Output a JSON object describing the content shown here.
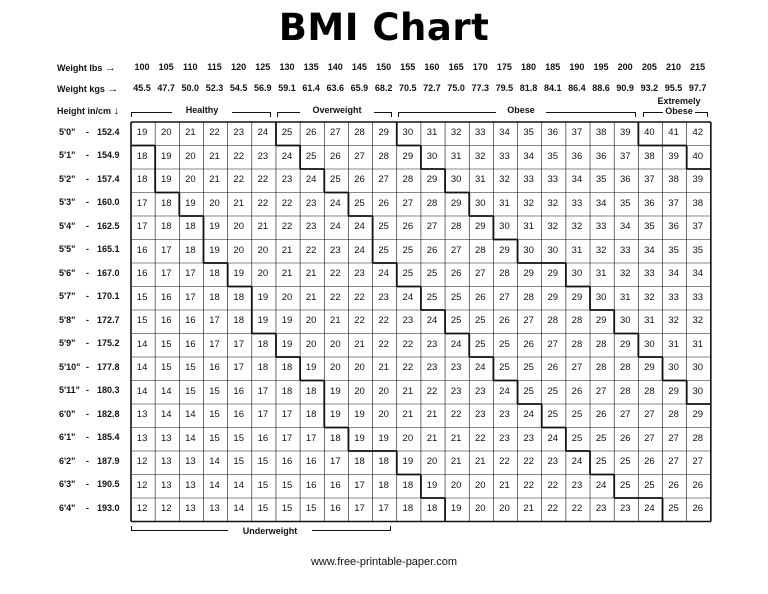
{
  "title": "BMI Chart",
  "labels": {
    "weight_lbs": "Weight lbs",
    "weight_kgs": "Weight kgs",
    "height": "Height in/cm",
    "arrow_right": "→",
    "arrow_down": "↓"
  },
  "weights_lbs": [
    "100",
    "105",
    "110",
    "115",
    "120",
    "125",
    "130",
    "135",
    "140",
    "145",
    "150",
    "155",
    "160",
    "165",
    "170",
    "175",
    "180",
    "185",
    "190",
    "195",
    "200",
    "205",
    "210",
    "215"
  ],
  "weights_kgs": [
    "45.5",
    "47.7",
    "50.0",
    "52.3",
    "54.5",
    "56.9",
    "59.1",
    "61.4",
    "63.6",
    "65.9",
    "68.2",
    "70.5",
    "72.7",
    "75.0",
    "77.3",
    "79.5",
    "81.8",
    "84.1",
    "86.4",
    "88.6",
    "90.9",
    "93.2",
    "95.5",
    "97.7"
  ],
  "categories": {
    "healthy": "Healthy",
    "overweight": "Overweight",
    "obese": "Obese",
    "extremely_obese_1": "Extremely",
    "extremely_obese_2": "Obese",
    "underweight": "Underweight"
  },
  "heights": [
    {
      "ft": "5'0\"",
      "cm": "152.4"
    },
    {
      "ft": "5'1\"",
      "cm": "154.9"
    },
    {
      "ft": "5'2\"",
      "cm": "157.4"
    },
    {
      "ft": "5'3\"",
      "cm": "160.0"
    },
    {
      "ft": "5'4\"",
      "cm": "162.5"
    },
    {
      "ft": "5'5\"",
      "cm": "165.1"
    },
    {
      "ft": "5'6\"",
      "cm": "167.0"
    },
    {
      "ft": "5'7\"",
      "cm": "170.1"
    },
    {
      "ft": "5'8\"",
      "cm": "172.7"
    },
    {
      "ft": "5'9\"",
      "cm": "175.2"
    },
    {
      "ft": "5'10\"",
      "cm": "177.8"
    },
    {
      "ft": "5'11\"",
      "cm": "180.3"
    },
    {
      "ft": "6'0\"",
      "cm": "182.8"
    },
    {
      "ft": "6'1\"",
      "cm": "185.4"
    },
    {
      "ft": "6'2\"",
      "cm": "187.9"
    },
    {
      "ft": "6'3\"",
      "cm": "190.5"
    },
    {
      "ft": "6'4\"",
      "cm": "193.0"
    }
  ],
  "bmi": [
    [
      19,
      20,
      21,
      22,
      23,
      24,
      25,
      26,
      27,
      28,
      29,
      30,
      31,
      32,
      33,
      34,
      35,
      36,
      37,
      38,
      39,
      40,
      41,
      42
    ],
    [
      18,
      19,
      20,
      21,
      22,
      23,
      24,
      25,
      26,
      27,
      28,
      29,
      30,
      31,
      32,
      33,
      34,
      35,
      36,
      36,
      37,
      38,
      39,
      40
    ],
    [
      18,
      19,
      20,
      21,
      22,
      22,
      23,
      24,
      25,
      26,
      27,
      28,
      29,
      30,
      31,
      32,
      33,
      33,
      34,
      35,
      36,
      37,
      38,
      39
    ],
    [
      17,
      18,
      19,
      20,
      21,
      22,
      22,
      23,
      24,
      25,
      26,
      27,
      28,
      29,
      30,
      31,
      32,
      32,
      33,
      34,
      35,
      36,
      37,
      38
    ],
    [
      17,
      18,
      18,
      19,
      20,
      21,
      22,
      23,
      24,
      24,
      25,
      26,
      27,
      28,
      29,
      30,
      31,
      32,
      32,
      33,
      34,
      35,
      36,
      37
    ],
    [
      16,
      17,
      18,
      19,
      20,
      20,
      21,
      22,
      23,
      24,
      25,
      25,
      26,
      27,
      28,
      29,
      30,
      30,
      31,
      32,
      33,
      34,
      35,
      35
    ],
    [
      16,
      17,
      17,
      18,
      19,
      20,
      21,
      21,
      22,
      23,
      24,
      25,
      25,
      26,
      27,
      28,
      29,
      29,
      30,
      31,
      32,
      33,
      34,
      34
    ],
    [
      15,
      16,
      17,
      18,
      18,
      19,
      20,
      21,
      22,
      22,
      23,
      24,
      25,
      25,
      26,
      27,
      28,
      29,
      29,
      30,
      31,
      32,
      33,
      33
    ],
    [
      15,
      16,
      16,
      17,
      18,
      19,
      19,
      20,
      21,
      22,
      22,
      23,
      24,
      25,
      25,
      26,
      27,
      28,
      28,
      29,
      30,
      31,
      32,
      32
    ],
    [
      14,
      15,
      16,
      17,
      17,
      18,
      19,
      20,
      20,
      21,
      22,
      22,
      23,
      24,
      25,
      25,
      26,
      27,
      28,
      28,
      29,
      30,
      31,
      31
    ],
    [
      14,
      15,
      15,
      16,
      17,
      18,
      18,
      19,
      20,
      20,
      21,
      22,
      23,
      23,
      24,
      25,
      25,
      26,
      27,
      28,
      28,
      29,
      30,
      30
    ],
    [
      14,
      14,
      15,
      15,
      16,
      17,
      18,
      18,
      19,
      20,
      20,
      21,
      22,
      23,
      23,
      24,
      25,
      25,
      26,
      27,
      28,
      28,
      29,
      30
    ],
    [
      13,
      14,
      14,
      15,
      16,
      17,
      17,
      18,
      19,
      19,
      20,
      21,
      21,
      22,
      23,
      23,
      24,
      25,
      25,
      26,
      27,
      27,
      28,
      29
    ],
    [
      13,
      13,
      14,
      15,
      15,
      16,
      17,
      17,
      18,
      19,
      19,
      20,
      21,
      21,
      22,
      23,
      23,
      24,
      25,
      25,
      26,
      27,
      27,
      28
    ],
    [
      12,
      13,
      13,
      14,
      15,
      15,
      16,
      16,
      17,
      18,
      18,
      19,
      20,
      21,
      21,
      22,
      22,
      23,
      24,
      25,
      25,
      26,
      27,
      27
    ],
    [
      12,
      13,
      13,
      14,
      14,
      15,
      15,
      16,
      16,
      17,
      18,
      18,
      19,
      20,
      20,
      21,
      22,
      22,
      23,
      24,
      25,
      25,
      26,
      26
    ],
    [
      12,
      12,
      13,
      13,
      14,
      15,
      15,
      15,
      16,
      17,
      17,
      18,
      18,
      19,
      20,
      20,
      21,
      22,
      22,
      23,
      23,
      24,
      25,
      26
    ]
  ],
  "footer": "www.free-printable-paper.com"
}
